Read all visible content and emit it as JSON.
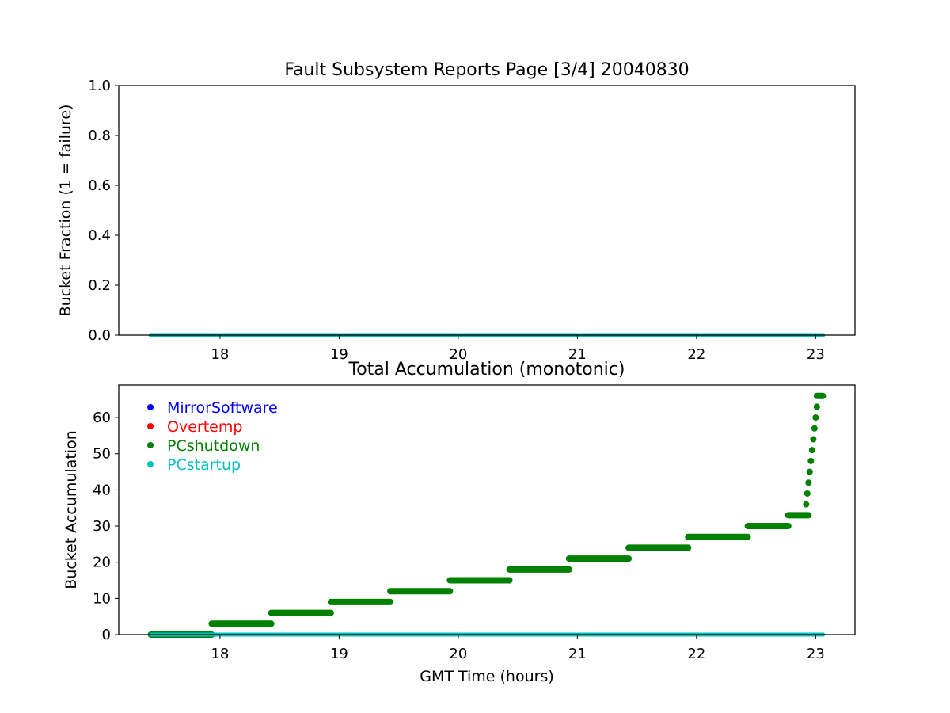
{
  "figure": {
    "background": "#ffffff"
  },
  "chart_data": [
    {
      "type": "line",
      "title": "Fault Subsystem Reports Page [3/4] 20040830",
      "xlabel": "",
      "ylabel": "Bucket Fraction (1 = failure)",
      "xlim": [
        17.15,
        23.33
      ],
      "ylim": [
        0,
        1.0
      ],
      "xticks": [
        18,
        19,
        20,
        21,
        22,
        23
      ],
      "xtick_labels": [
        "18",
        "19",
        "20",
        "21",
        "22",
        "23"
      ],
      "yticks": [
        0,
        0.2,
        0.4,
        0.6,
        0.8,
        1.0
      ],
      "ytick_labels": [
        "0.0",
        "0.2",
        "0.4",
        "0.6",
        "0.8",
        "1.0"
      ],
      "grid": false,
      "series": [
        {
          "name": "MirrorSoftware",
          "color": "#0000ff",
          "x": [
            17.42,
            23.06
          ],
          "y": [
            0,
            0
          ]
        },
        {
          "name": "Overtemp",
          "color": "#ff0000",
          "x": [
            17.42,
            23.06
          ],
          "y": [
            0,
            0
          ]
        },
        {
          "name": "PCshutdown",
          "color": "#008000",
          "x": [
            17.42,
            23.06
          ],
          "y": [
            0,
            0
          ]
        },
        {
          "name": "PCstartup",
          "color": "#00bfbf",
          "x": [
            17.42,
            23.06
          ],
          "y": [
            0,
            0
          ]
        }
      ]
    },
    {
      "type": "scatter",
      "title": "Total Accumulation (monotonic)",
      "xlabel": "GMT Time (hours)",
      "ylabel": "Bucket Accumulation",
      "xlim": [
        17.15,
        23.33
      ],
      "ylim": [
        0,
        69
      ],
      "xticks": [
        18,
        19,
        20,
        21,
        22,
        23
      ],
      "xtick_labels": [
        "18",
        "19",
        "20",
        "21",
        "22",
        "23"
      ],
      "yticks": [
        0,
        10,
        20,
        30,
        40,
        50,
        60
      ],
      "ytick_labels": [
        "0",
        "10",
        "20",
        "30",
        "40",
        "50",
        "60"
      ],
      "grid": false,
      "legend": "upper-left",
      "series": [
        {
          "name": "MirrorSoftware",
          "color": "#0000ff",
          "x": [
            17.42,
            23.06
          ],
          "y": [
            0,
            0
          ]
        },
        {
          "name": "Overtemp",
          "color": "#ff0000",
          "x": [
            17.42,
            23.06
          ],
          "y": [
            0,
            0
          ]
        },
        {
          "name": "PCshutdown",
          "color": "#008000",
          "steps": [
            {
              "x0": 17.42,
              "x1": 17.93,
              "y": 0
            },
            {
              "x0": 17.93,
              "x1": 18.43,
              "y": 3
            },
            {
              "x0": 18.43,
              "x1": 18.93,
              "y": 6
            },
            {
              "x0": 18.93,
              "x1": 19.43,
              "y": 9
            },
            {
              "x0": 19.43,
              "x1": 19.93,
              "y": 12
            },
            {
              "x0": 19.93,
              "x1": 20.43,
              "y": 15
            },
            {
              "x0": 20.43,
              "x1": 20.93,
              "y": 18
            },
            {
              "x0": 20.93,
              "x1": 21.43,
              "y": 21
            },
            {
              "x0": 21.43,
              "x1": 21.93,
              "y": 24
            },
            {
              "x0": 21.93,
              "x1": 22.43,
              "y": 27
            },
            {
              "x0": 22.43,
              "x1": 22.77,
              "y": 30
            },
            {
              "x0": 22.77,
              "x1": 22.94,
              "y": 33
            },
            {
              "x0": 23.01,
              "x1": 23.06,
              "y": 66
            }
          ],
          "rise": {
            "x": [
              22.92,
              22.93,
              22.94,
              22.95,
              22.96,
              22.97,
              22.98,
              22.99,
              23.0,
              23.01
            ],
            "y": [
              36,
              39,
              42,
              45,
              48,
              51,
              54,
              57,
              60,
              63
            ]
          }
        },
        {
          "name": "PCstartup",
          "color": "#00bfbf",
          "x": [
            17.42,
            23.06
          ],
          "y": [
            0,
            0
          ]
        }
      ]
    }
  ]
}
